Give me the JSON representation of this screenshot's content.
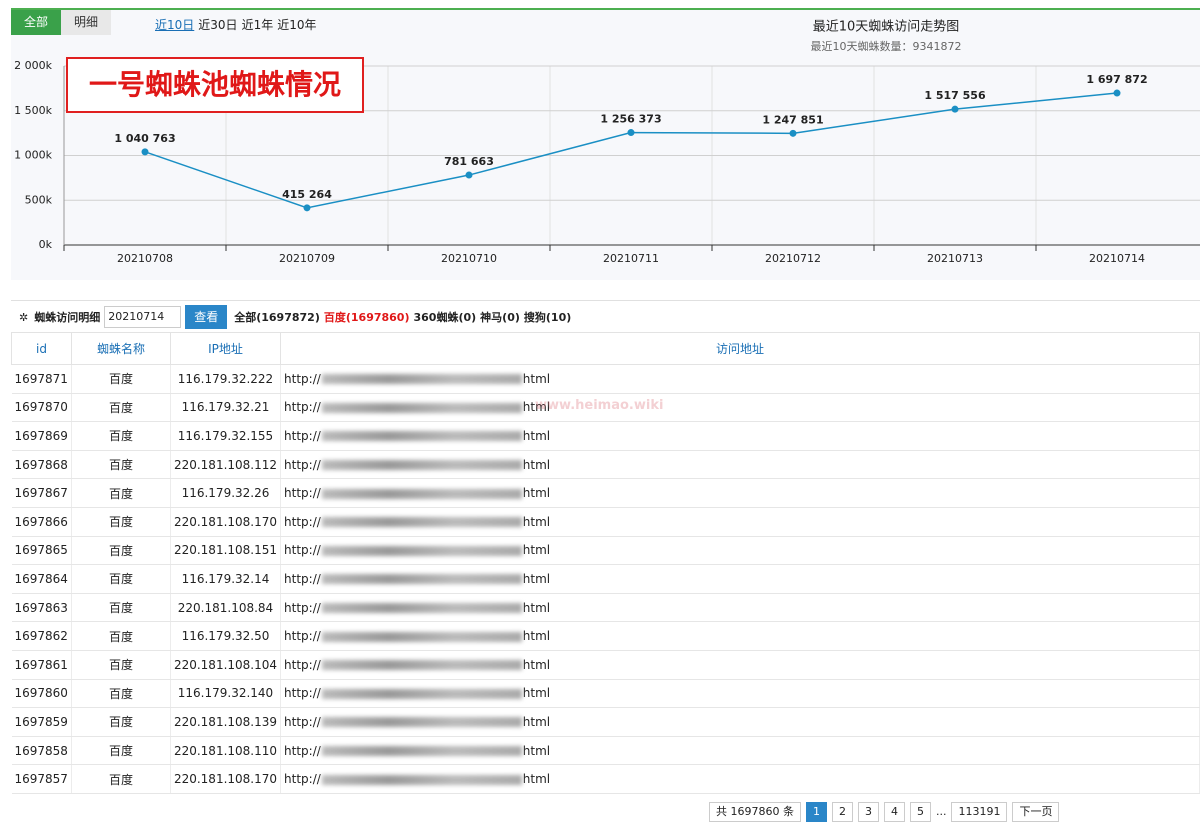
{
  "tabs": [
    "全部",
    "明细"
  ],
  "ranges": [
    "近10日",
    "近30日",
    "近1年",
    "近10年"
  ],
  "chart_data": {
    "type": "line",
    "title": "最近10天蜘蛛访问走势图",
    "subtitle": "最近10天蜘蛛数量：9341872",
    "annotation": "一号蜘蛛池蜘蛛情况",
    "categories": [
      "20210708",
      "20210709",
      "20210710",
      "20210711",
      "20210712",
      "20210713",
      "20210714"
    ],
    "values": [
      1040763,
      415264,
      781663,
      1256373,
      1247851,
      1517556,
      1697872
    ],
    "value_labels": [
      "1 040 763",
      "415 264",
      "781 663",
      "1 256 373",
      "1 247 851",
      "1 517 556",
      "1 697 872"
    ],
    "color": "#1a8fc4",
    "ylim": [
      0,
      2000000
    ],
    "yticks": [
      {
        "value": 0,
        "label": "0k"
      },
      {
        "value": 500000,
        "label": "500k"
      },
      {
        "value": 1000000,
        "label": "1 000k"
      },
      {
        "value": 1500000,
        "label": "1 500k"
      },
      {
        "value": 2000000,
        "label": "2 000k"
      }
    ],
    "grid": true
  },
  "filter": {
    "label": "蜘蛛访问明细",
    "date": "20210714",
    "button": "查看",
    "stats": [
      "全部(1697872)",
      "百度(1697860)",
      "360蜘蛛(0)",
      "神马(0)",
      "搜狗(10)"
    ]
  },
  "watermark": "www.heimao.wiki",
  "table": {
    "headers": [
      "id",
      "蜘蛛名称",
      "IP地址",
      "访问地址"
    ],
    "rows": [
      [
        "1697871",
        "百度",
        "116.179.32.222",
        "http://",
        "html"
      ],
      [
        "1697870",
        "百度",
        "116.179.32.21",
        "http://",
        "html"
      ],
      [
        "1697869",
        "百度",
        "116.179.32.155",
        "http://",
        "html"
      ],
      [
        "1697868",
        "百度",
        "220.181.108.112",
        "http://",
        "html"
      ],
      [
        "1697867",
        "百度",
        "116.179.32.26",
        "http://",
        "html"
      ],
      [
        "1697866",
        "百度",
        "220.181.108.170",
        "http://",
        "html"
      ],
      [
        "1697865",
        "百度",
        "220.181.108.151",
        "http://",
        "html"
      ],
      [
        "1697864",
        "百度",
        "116.179.32.14",
        "http://",
        "html"
      ],
      [
        "1697863",
        "百度",
        "220.181.108.84",
        "http://",
        "html"
      ],
      [
        "1697862",
        "百度",
        "116.179.32.50",
        "http://",
        "html"
      ],
      [
        "1697861",
        "百度",
        "220.181.108.104",
        "http://",
        "html"
      ],
      [
        "1697860",
        "百度",
        "116.179.32.140",
        "http://",
        "html"
      ],
      [
        "1697859",
        "百度",
        "220.181.108.139",
        "http://",
        "html"
      ],
      [
        "1697858",
        "百度",
        "220.181.108.110",
        "http://",
        "html"
      ],
      [
        "1697857",
        "百度",
        "220.181.108.170",
        "http://",
        "html"
      ]
    ]
  },
  "pagination": {
    "total": "共 1697860 条",
    "pages": [
      "1",
      "2",
      "3",
      "4",
      "5"
    ],
    "ellipsis": "...",
    "last": "113191",
    "next": "下一页"
  }
}
